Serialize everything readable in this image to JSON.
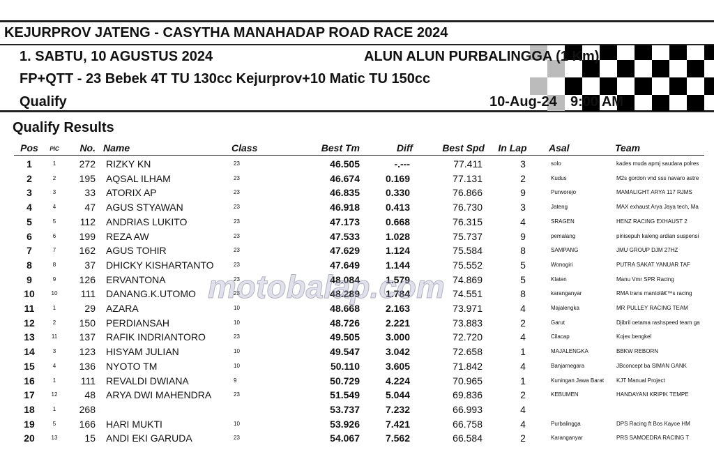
{
  "header": {
    "title": "KEJURPROV JATENG - CASYTHA MANAHADAP ROAD RACE 2024",
    "day": "1. SABTU, 10 AGUSTUS 2024",
    "venue": "ALUN ALUN PURBALINGGA (1 Km)",
    "event": "FP+QTT - 23 Bebek 4T TU 130cc Kejurprov+10 Matic TU 150cc",
    "session": "Qualify",
    "date": "10-Aug-24",
    "time": "9:00 AM"
  },
  "section": "Qualify Results",
  "watermark": "motobalap.com",
  "table": {
    "columns": [
      "Pos",
      "PIC",
      "No.",
      "Name",
      "Class",
      "Best Tm",
      "Diff",
      "Best Spd",
      "In Lap",
      "Asal",
      "Team"
    ],
    "rows": [
      [
        "1",
        "1",
        "272",
        "RIZKY KN",
        "23",
        "46.505",
        "-.---",
        "77.411",
        "3",
        "solo",
        "kades muda apmj saudara polres"
      ],
      [
        "2",
        "2",
        "195",
        "AQSAL ILHAM",
        "23",
        "46.674",
        "0.169",
        "77.131",
        "2",
        "Kudus",
        "M2s gordon vnd sss navaro astre"
      ],
      [
        "3",
        "3",
        "33",
        "ATORIX AP",
        "23",
        "46.835",
        "0.330",
        "76.866",
        "9",
        "Purworejo",
        "MAMALIGHT ARYA 117 RJMS"
      ],
      [
        "4",
        "4",
        "47",
        "AGUS STYAWAN",
        "23",
        "46.918",
        "0.413",
        "76.730",
        "3",
        "Jateng",
        "MAX exhaust Arya Jaya tech, Ma"
      ],
      [
        "5",
        "5",
        "112",
        "ANDRIAS LUKITO",
        "23",
        "47.173",
        "0.668",
        "76.315",
        "4",
        "SRAGEN",
        "HENZ RACING EXHAUST 2"
      ],
      [
        "6",
        "6",
        "199",
        "REZA AW",
        "23",
        "47.533",
        "1.028",
        "75.737",
        "9",
        "pemalang",
        "pinisepuh kaleng ardian suspensi"
      ],
      [
        "7",
        "7",
        "162",
        "AGUS TOHIR",
        "23",
        "47.629",
        "1.124",
        "75.584",
        "8",
        "SAMPANG",
        "JMU GROUP DJM 27HZ"
      ],
      [
        "8",
        "8",
        "37",
        "DHICKY KISHARTANTO",
        "23",
        "47.649",
        "1.144",
        "75.552",
        "5",
        "Wonogiri",
        "PUTRA SAKAT YANUAR TAF"
      ],
      [
        "9",
        "9",
        "126",
        "ERVANTONA",
        "23",
        "48.084",
        "1.579",
        "74.869",
        "5",
        "Klaten",
        "Manu Vmr SPR Racing"
      ],
      [
        "10",
        "10",
        "111",
        "DANANG.K.UTOMO",
        "23",
        "48.289",
        "1.784",
        "74.551",
        "8",
        "karanganyar",
        "RMA trans mantolâ€™s racing"
      ],
      [
        "11",
        "1",
        "29",
        "AZARA",
        "10",
        "48.668",
        "2.163",
        "73.971",
        "4",
        "Majalengka",
        "MR PULLEY RACING TEAM"
      ],
      [
        "12",
        "2",
        "150",
        "PERDIANSAH",
        "10",
        "48.726",
        "2.221",
        "73.883",
        "2",
        "Garut",
        "Djibril oetama rashspeed team ga"
      ],
      [
        "13",
        "11",
        "137",
        "RAFIK INDRIANTORO",
        "23",
        "49.505",
        "3.000",
        "72.720",
        "4",
        "Cilacap",
        "Kojex bengkel"
      ],
      [
        "14",
        "3",
        "123",
        "HISYAM JULIAN",
        "10",
        "49.547",
        "3.042",
        "72.658",
        "1",
        "MAJALENGKA",
        "BBKW REBORN"
      ],
      [
        "15",
        "4",
        "136",
        "NYOTO TM",
        "10",
        "50.110",
        "3.605",
        "71.842",
        "4",
        "Banjarnegara",
        "JBconcept ba SIMAN GANK"
      ],
      [
        "16",
        "1",
        "111",
        "REVALDI DWIANA",
        "9",
        "50.729",
        "4.224",
        "70.965",
        "1",
        "Kuningan Jawa Barat",
        "KJT Manual Project"
      ],
      [
        "17",
        "12",
        "48",
        "ARYA DWI MAHENDRA",
        "23",
        "51.549",
        "5.044",
        "69.836",
        "2",
        "KEBUMEN",
        "HANDAYANI KRIPIK TEMPE"
      ],
      [
        "18",
        "1",
        "268",
        null,
        null,
        "53.737",
        "7.232",
        "66.993",
        "4",
        null,
        null
      ],
      [
        "19",
        "5",
        "166",
        "HARI MUKTI",
        "10",
        "53.926",
        "7.421",
        "66.758",
        "4",
        "Purbalingga",
        "DPS Racing ft Bos Kayoe HM"
      ],
      [
        "20",
        "13",
        "15",
        "ANDI EKI GARUDA",
        "23",
        "54.067",
        "7.562",
        "66.584",
        "2",
        "Karanganyar",
        "PRS SAMOEDRA RACING T"
      ]
    ]
  }
}
